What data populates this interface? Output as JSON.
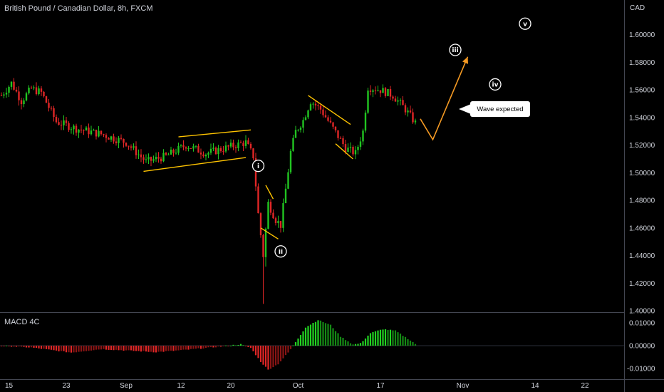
{
  "header": {
    "title": "British Pound / Canadian Dollar, 8h, FXCM",
    "currency": "CAD"
  },
  "indicator": {
    "title": "MACD 4C"
  },
  "annotation": {
    "callout_text": "Wave expected"
  },
  "colors": {
    "up": "#21c521",
    "down": "#e02626",
    "pattern": "#ffc400",
    "projection": "#f59a23",
    "grid": "#2a2e39"
  },
  "chart_data": {
    "type": "candlestick",
    "title": "British Pound / Canadian Dollar, 8h, FXCM",
    "timeframe": "8h",
    "ylim": [
      1.4,
      1.62
    ],
    "price_ticks": [
      {
        "value": 1.6,
        "label": "1.60000"
      },
      {
        "value": 1.58,
        "label": "1.58000"
      },
      {
        "value": 1.56,
        "label": "1.56000"
      },
      {
        "value": 1.54,
        "label": "1.54000"
      },
      {
        "value": 1.52,
        "label": "1.52000"
      },
      {
        "value": 1.5,
        "label": "1.50000"
      },
      {
        "value": 1.48,
        "label": "1.48000"
      },
      {
        "value": 1.46,
        "label": "1.46000"
      },
      {
        "value": 1.44,
        "label": "1.44000"
      },
      {
        "value": 1.42,
        "label": "1.42000"
      },
      {
        "value": 1.4,
        "label": "1.40000"
      }
    ],
    "macd_ylim": [
      -0.014,
      0.014
    ],
    "macd_ticks": [
      {
        "value": 0.01,
        "label": "0.01000"
      },
      {
        "value": 0.0,
        "label": "0.00000"
      },
      {
        "value": -0.01,
        "label": "-0.01000"
      }
    ],
    "x_ticks": [
      {
        "index": 3,
        "label": "15"
      },
      {
        "index": 26,
        "label": "23"
      },
      {
        "index": 50,
        "label": "Sep"
      },
      {
        "index": 72,
        "label": "12"
      },
      {
        "index": 92,
        "label": "20"
      },
      {
        "index": 119,
        "label": "Oct"
      },
      {
        "index": 152,
        "label": "17"
      },
      {
        "index": 185,
        "label": "Nov"
      },
      {
        "index": 214,
        "label": "14"
      },
      {
        "index": 234,
        "label": "22"
      }
    ],
    "anchors": [
      {
        "i": 0,
        "p": 1.556
      },
      {
        "i": 4,
        "p": 1.565
      },
      {
        "i": 8,
        "p": 1.552
      },
      {
        "i": 12,
        "p": 1.561
      },
      {
        "i": 16,
        "p": 1.558
      },
      {
        "i": 22,
        "p": 1.537
      },
      {
        "i": 30,
        "p": 1.532
      },
      {
        "i": 40,
        "p": 1.528
      },
      {
        "i": 50,
        "p": 1.522
      },
      {
        "i": 58,
        "p": 1.508
      },
      {
        "i": 66,
        "p": 1.512
      },
      {
        "i": 74,
        "p": 1.52
      },
      {
        "i": 82,
        "p": 1.514
      },
      {
        "i": 90,
        "p": 1.518
      },
      {
        "i": 98,
        "p": 1.522
      },
      {
        "i": 101,
        "p": 1.512
      },
      {
        "i": 103,
        "p": 1.47
      },
      {
        "i": 105,
        "p": 1.44
      },
      {
        "i": 107,
        "p": 1.478
      },
      {
        "i": 110,
        "p": 1.466
      },
      {
        "i": 112,
        "p": 1.462
      },
      {
        "i": 114,
        "p": 1.488
      },
      {
        "i": 116,
        "p": 1.515
      },
      {
        "i": 118,
        "p": 1.53
      },
      {
        "i": 121,
        "p": 1.538
      },
      {
        "i": 124,
        "p": 1.552
      },
      {
        "i": 128,
        "p": 1.546
      },
      {
        "i": 133,
        "p": 1.532
      },
      {
        "i": 138,
        "p": 1.518
      },
      {
        "i": 142,
        "p": 1.514
      },
      {
        "i": 145,
        "p": 1.53
      },
      {
        "i": 147,
        "p": 1.562
      },
      {
        "i": 152,
        "p": 1.56
      },
      {
        "i": 157,
        "p": 1.556
      },
      {
        "i": 162,
        "p": 1.546
      },
      {
        "i": 166,
        "p": 1.536
      }
    ],
    "spikes": [
      {
        "i": 105,
        "low": 1.405
      },
      {
        "i": 106,
        "low": 1.432
      }
    ],
    "macd_anchors": [
      {
        "i": 0,
        "v": 0.0
      },
      {
        "i": 12,
        "v": -0.0008
      },
      {
        "i": 28,
        "v": -0.003
      },
      {
        "i": 40,
        "v": -0.0015
      },
      {
        "i": 52,
        "v": -0.0022
      },
      {
        "i": 62,
        "v": -0.0028
      },
      {
        "i": 72,
        "v": -0.002
      },
      {
        "i": 84,
        "v": -0.0008
      },
      {
        "i": 96,
        "v": 0.0006
      },
      {
        "i": 100,
        "v": -0.001
      },
      {
        "i": 104,
        "v": -0.007
      },
      {
        "i": 107,
        "v": -0.0105
      },
      {
        "i": 111,
        "v": -0.008
      },
      {
        "i": 115,
        "v": -0.003
      },
      {
        "i": 117,
        "v": 0.0
      },
      {
        "i": 122,
        "v": 0.008
      },
      {
        "i": 127,
        "v": 0.0112
      },
      {
        "i": 132,
        "v": 0.009
      },
      {
        "i": 136,
        "v": 0.004
      },
      {
        "i": 141,
        "v": 0.0005
      },
      {
        "i": 144,
        "v": 0.001
      },
      {
        "i": 148,
        "v": 0.0055
      },
      {
        "i": 153,
        "v": 0.0072
      },
      {
        "i": 158,
        "v": 0.0065
      },
      {
        "i": 163,
        "v": 0.003
      },
      {
        "i": 166,
        "v": 0.0008
      }
    ],
    "elliott_waves": [
      {
        "label": "i",
        "i": 103,
        "p": 1.505
      },
      {
        "label": "ii",
        "i": 112,
        "p": 1.443
      },
      {
        "label": "iii",
        "i": 182,
        "p": 1.589
      },
      {
        "label": "iv",
        "i": 198,
        "p": 1.564
      },
      {
        "label": "v",
        "i": 210,
        "p": 1.608
      }
    ],
    "patterns": [
      {
        "from": {
          "i": 57,
          "p": 1.501
        },
        "to": {
          "i": 98,
          "p": 1.511
        }
      },
      {
        "from": {
          "i": 71,
          "p": 1.526
        },
        "to": {
          "i": 100,
          "p": 1.531
        }
      },
      {
        "from": {
          "i": 104,
          "p": 1.46
        },
        "to": {
          "i": 111,
          "p": 1.452
        }
      },
      {
        "from": {
          "i": 106,
          "p": 1.491
        },
        "to": {
          "i": 109,
          "p": 1.481
        }
      },
      {
        "from": {
          "i": 123,
          "p": 1.556
        },
        "to": {
          "i": 140,
          "p": 1.535
        }
      },
      {
        "from": {
          "i": 134,
          "p": 1.521
        },
        "to": {
          "i": 141,
          "p": 1.51
        }
      }
    ],
    "projection": [
      {
        "i": 168,
        "p": 1.539
      },
      {
        "i": 173,
        "p": 1.524
      },
      {
        "i": 187,
        "p": 1.584
      }
    ]
  }
}
